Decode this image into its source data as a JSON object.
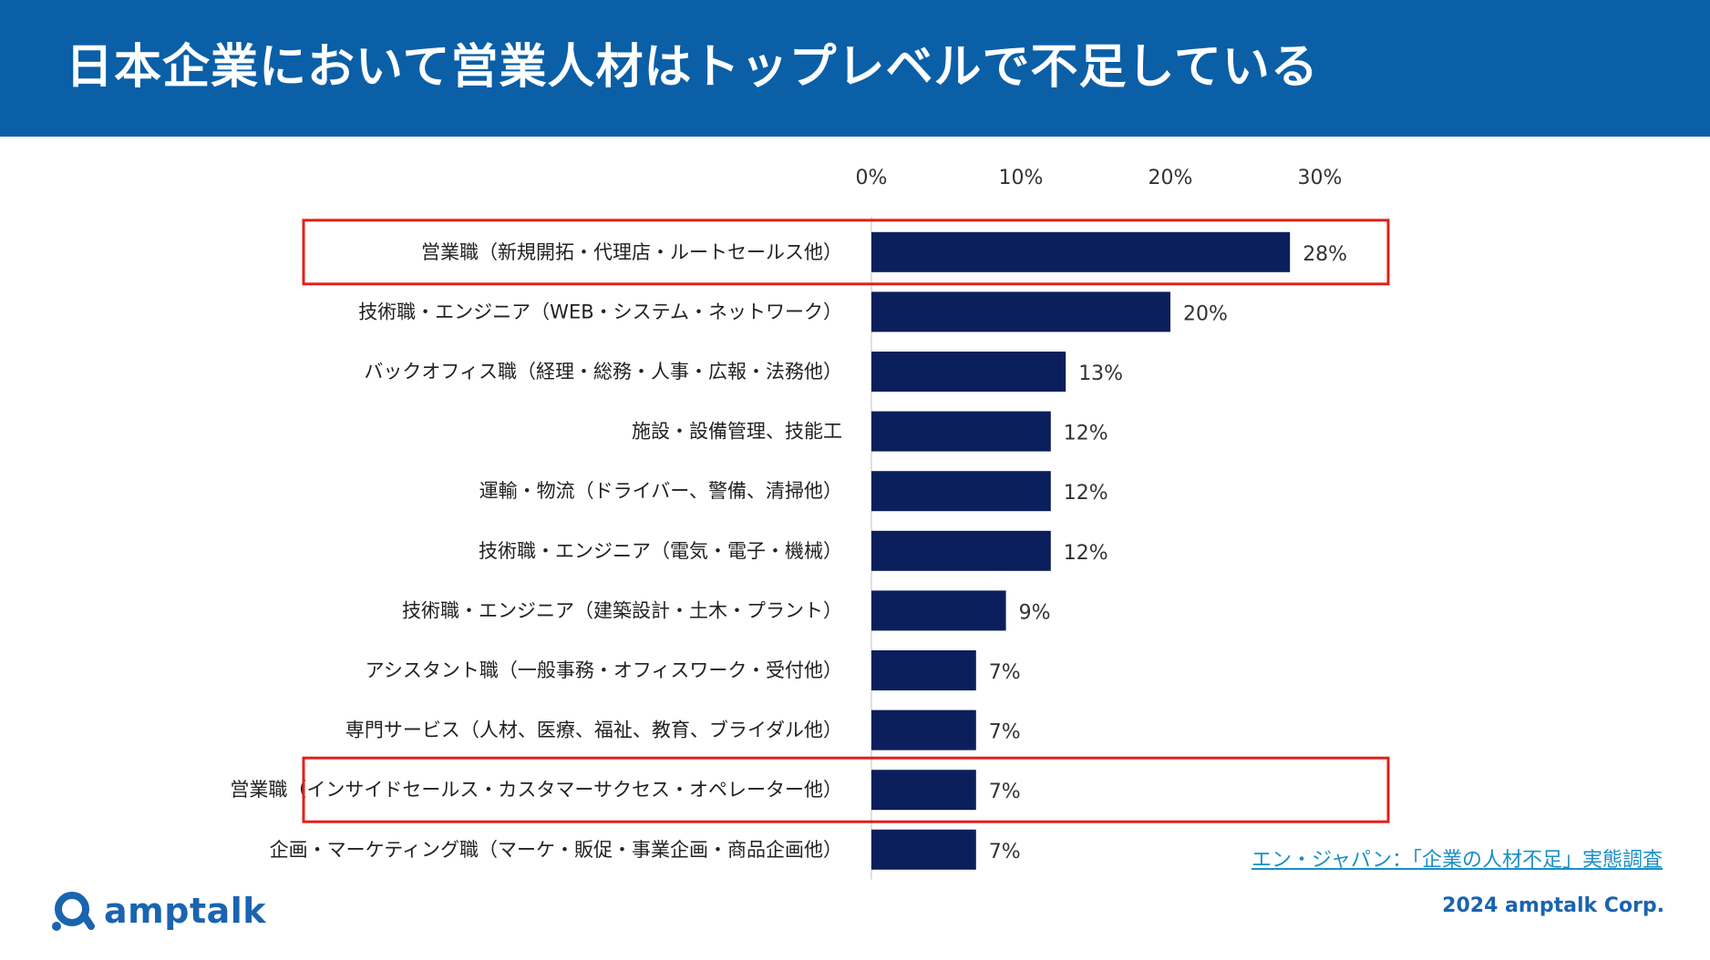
{
  "title": "日本企業において営業人材はトップレベルで不足している",
  "source_link": "エン・ジャパン：「企業の人材不足」実態調査",
  "logo_text": "amptalk",
  "copyright": "2024 amptalk Corp.",
  "colors": {
    "header": "#0a5fa7",
    "bar": "#0b1f5c",
    "highlight": "#e0201c",
    "brand": "#1a64b0"
  },
  "chart_data": {
    "type": "bar",
    "orientation": "horizontal",
    "xlim": [
      0,
      30
    ],
    "ticks": [
      "0%",
      "10%",
      "20%",
      "30%"
    ],
    "categories": [
      "営業職（新規開拓・代理店・ルートセールス他）",
      "技術職・エンジニア（WEB・システム・ネットワーク）",
      "バックオフィス職（経理・総務・人事・広報・法務他）",
      "施設・設備管理、技能工",
      "運輸・物流（ドライバー、警備、清掃他）",
      "技術職・エンジニア（電気・電子・機械）",
      "技術職・エンジニア（建築設計・土木・プラント）",
      "アシスタント職（一般事務・オフィスワーク・受付他）",
      "専門サービス（人材、医療、福祉、教育、ブライダル他）",
      "営業職（インサイドセールス・カスタマーサクセス・オペレーター他）",
      "企画・マーケティング職（マーケ・販促・事業企画・商品企画他）"
    ],
    "values": [
      28,
      20,
      13,
      12,
      12,
      12,
      9,
      7,
      7,
      7,
      7
    ],
    "value_labels": [
      "28%",
      "20%",
      "13%",
      "12%",
      "12%",
      "12%",
      "9%",
      "7%",
      "7%",
      "7%",
      "7%"
    ],
    "highlighted_indices": [
      0,
      9
    ]
  }
}
